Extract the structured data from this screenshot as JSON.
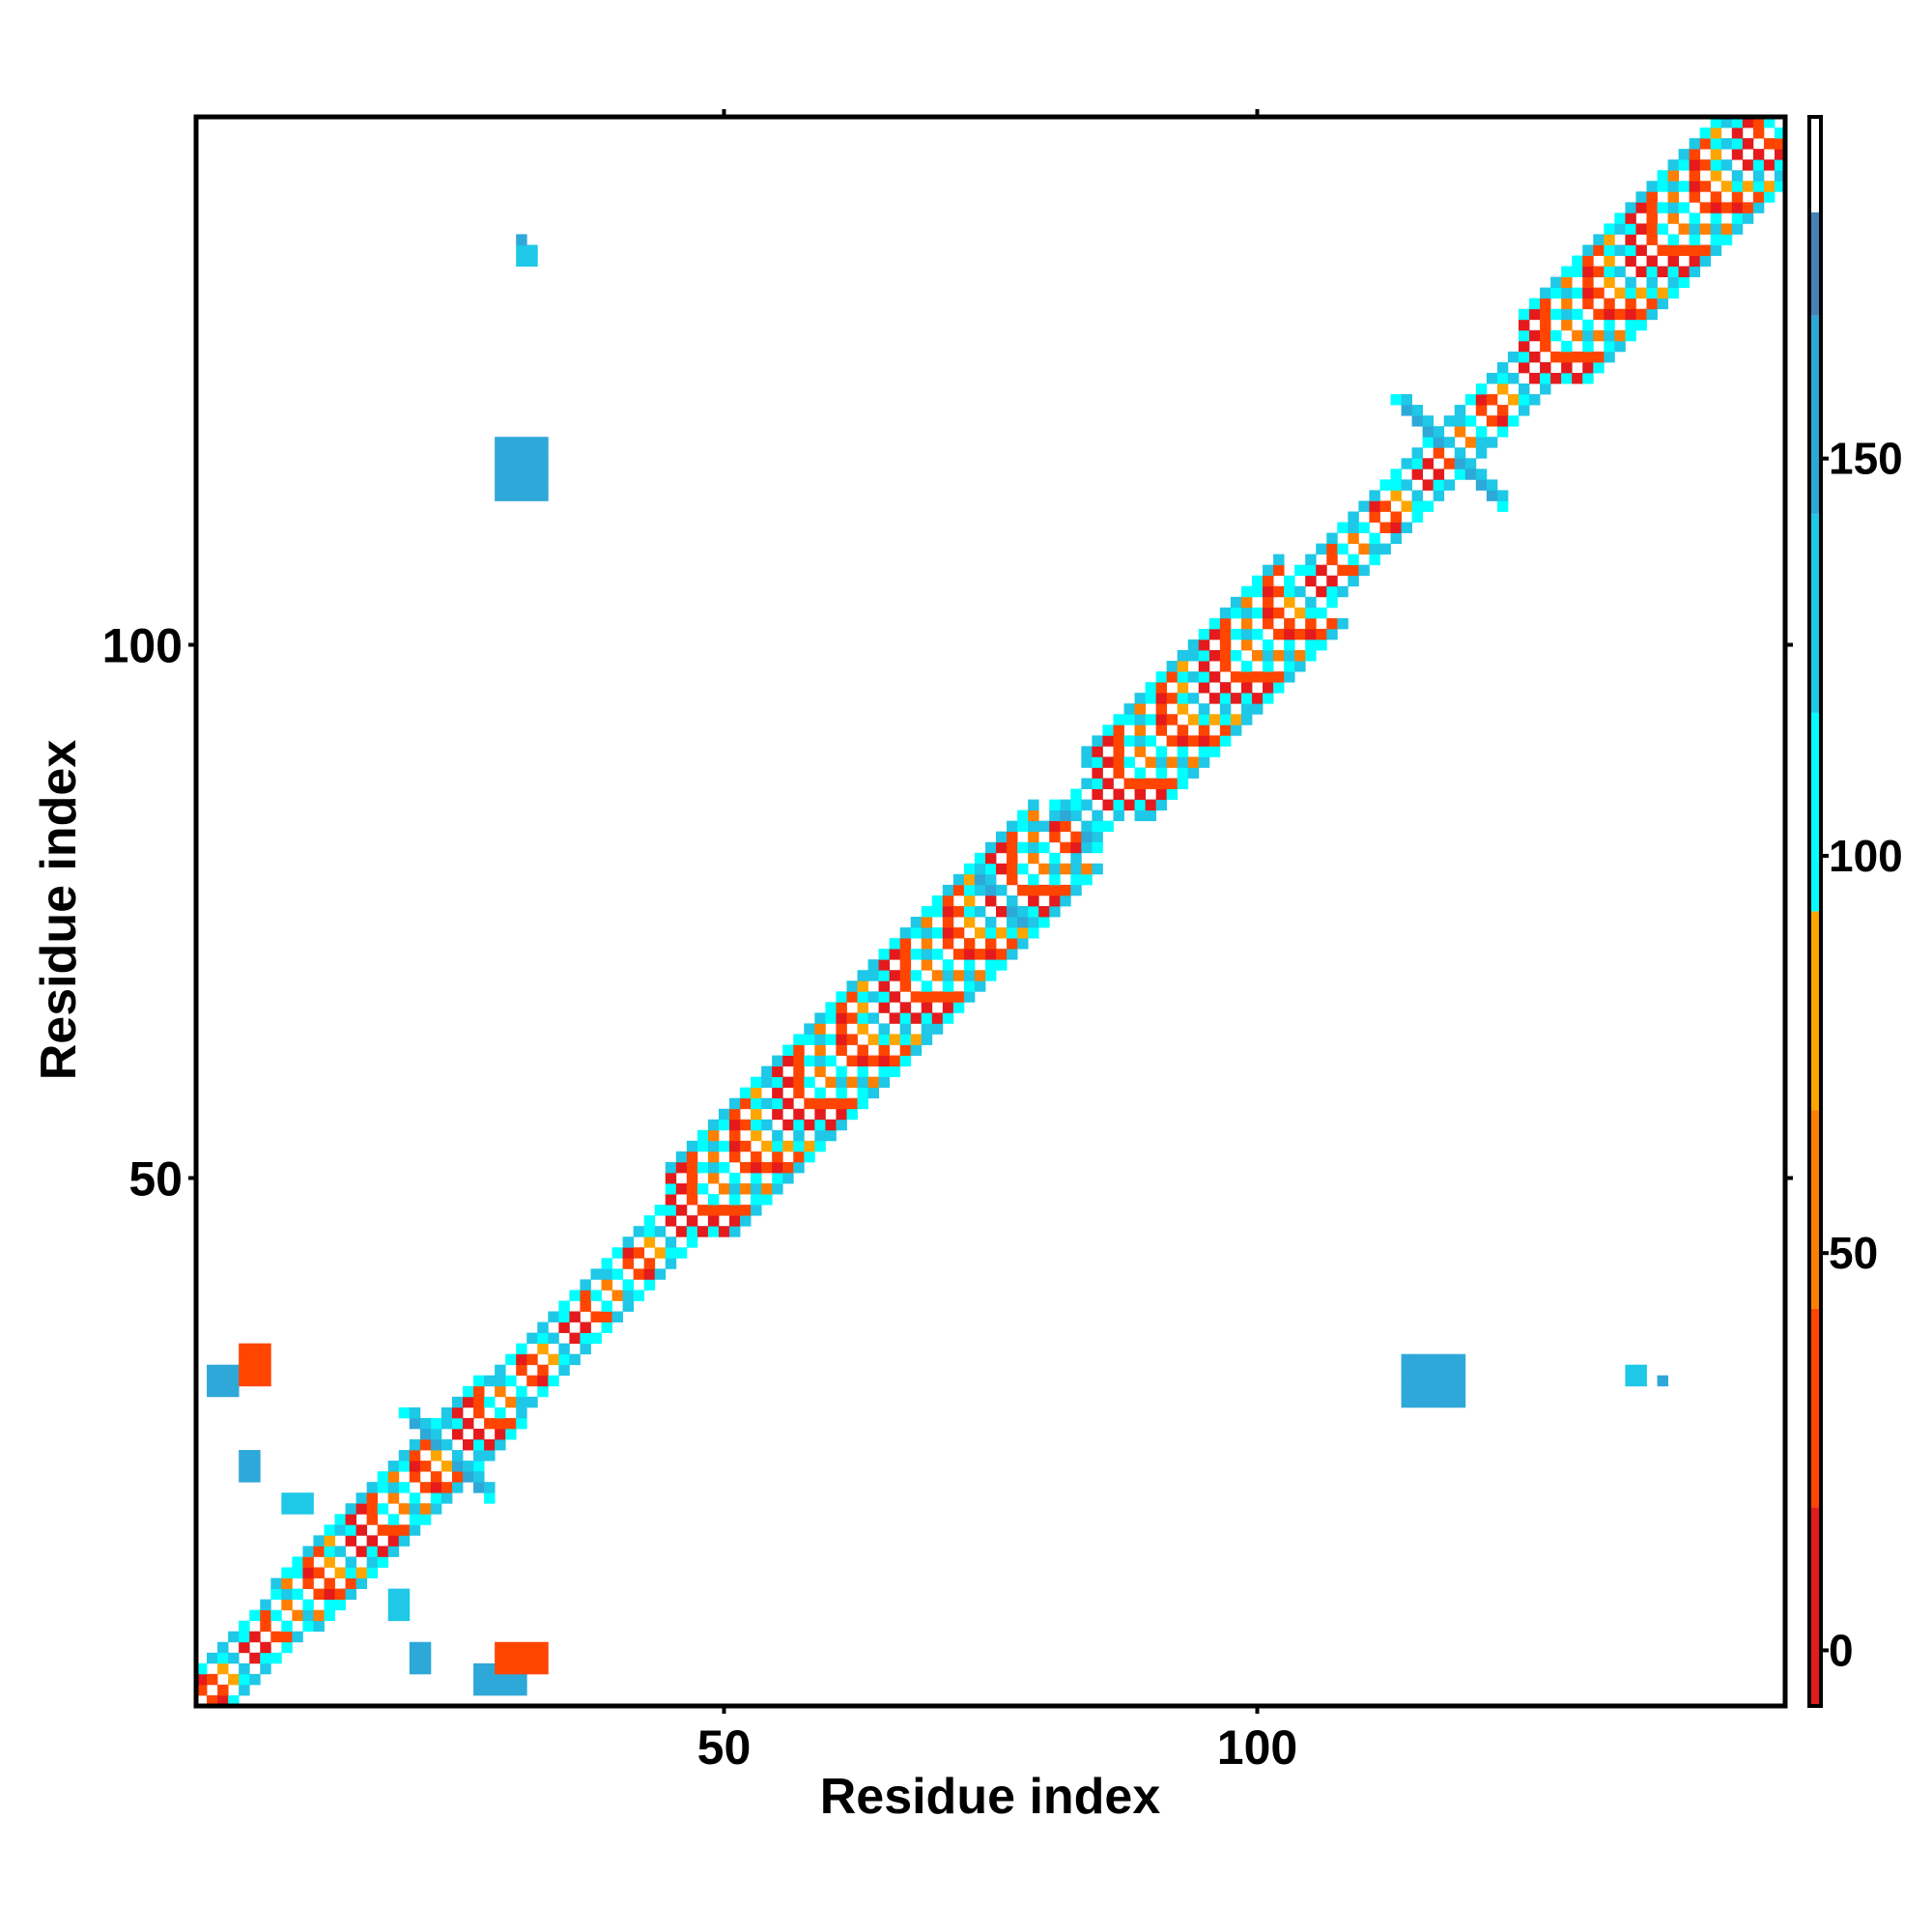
{
  "chart_data": {
    "type": "heatmap",
    "title": "",
    "xlabel": "Residue index",
    "ylabel": "Residue index",
    "xlim": [
      0.5,
      149.5
    ],
    "ylim": [
      0.5,
      149.5
    ],
    "xticks": [
      50,
      100
    ],
    "yticks": [
      50,
      100
    ],
    "xtick_labels": [
      "50",
      "100"
    ],
    "ytick_labels": [
      "50",
      "100"
    ],
    "grid": false,
    "legend": "none",
    "colorbar": {
      "ticks": [
        0,
        50,
        100,
        150
      ],
      "tick_labels": [
        "0",
        "50",
        "100",
        "150"
      ],
      "range": [
        -7,
        193
      ],
      "bands": [
        {
          "from": -7,
          "to": 18,
          "color": "#e41a1c"
        },
        {
          "from": 18,
          "to": 43,
          "color": "#ff4500"
        },
        {
          "from": 43,
          "to": 68,
          "color": "#ff7f00"
        },
        {
          "from": 68,
          "to": 93,
          "color": "#ffa500"
        },
        {
          "from": 93,
          "to": 118,
          "color": "#00ffff"
        },
        {
          "from": 118,
          "to": 143,
          "color": "#1ec8e6"
        },
        {
          "from": 143,
          "to": 168,
          "color": "#2ea8d8"
        },
        {
          "from": 168,
          "to": 181,
          "color": "#4682b4"
        },
        {
          "from": 181,
          "to": 193,
          "color": "#ffffff"
        }
      ]
    },
    "value_colors": {
      "red": "#e41a1c",
      "orangered": "#ff4500",
      "orange": "#ff7f00",
      "lightorange": "#ffa500",
      "cyan": "#00ffff",
      "skyblue": "#1ec8e6",
      "blue": "#4682b4"
    },
    "diagonal_band": {
      "from_residue": 1,
      "to_residue": 149,
      "segments": [
        {
          "start": 1,
          "end": 8,
          "halfwidth": 3
        },
        {
          "start": 8,
          "end": 20,
          "halfwidth": 4
        },
        {
          "start": 20,
          "end": 28,
          "halfwidth": 4
        },
        {
          "start": 28,
          "end": 45,
          "halfwidth": 3
        },
        {
          "start": 45,
          "end": 80,
          "halfwidth": 6
        },
        {
          "start": 80,
          "end": 84,
          "halfwidth": 3
        },
        {
          "start": 84,
          "end": 103,
          "halfwidth": 6
        },
        {
          "start": 103,
          "end": 116,
          "halfwidth": 3
        },
        {
          "start": 116,
          "end": 125,
          "halfwidth": 3
        },
        {
          "start": 125,
          "end": 149,
          "halfwidth": 6
        }
      ]
    },
    "crosses": [
      {
        "x": 24,
        "y": 24,
        "arm": 4
      },
      {
        "x": 76,
        "y": 76,
        "arm": 3
      },
      {
        "x": 118,
        "y": 118,
        "arm": 5
      },
      {
        "x": 83,
        "y": 83,
        "arm": 2
      }
    ],
    "off_diagonal_patches": [
      {
        "x0": 29,
        "y0": 114,
        "x1": 33,
        "y1": 119,
        "value": 160
      },
      {
        "x0": 114,
        "y0": 29,
        "x1": 119,
        "y1": 33,
        "value": 160
      },
      {
        "x0": 31,
        "y0": 136,
        "x1": 32,
        "y1": 137,
        "value": 120
      },
      {
        "x0": 31,
        "y0": 138,
        "x1": 31,
        "y1": 138,
        "value": 165
      },
      {
        "x0": 135,
        "y0": 31,
        "x1": 136,
        "y1": 32,
        "value": 120
      },
      {
        "x0": 138,
        "y0": 31,
        "x1": 138,
        "y1": 31,
        "value": 165
      },
      {
        "x0": 2,
        "y0": 30,
        "x1": 4,
        "y1": 32,
        "value": 165
      },
      {
        "x0": 5,
        "y0": 31,
        "x1": 7,
        "y1": 34,
        "value": 30
      },
      {
        "x0": 5,
        "y0": 22,
        "x1": 6,
        "y1": 24,
        "value": 165
      },
      {
        "x0": 9,
        "y0": 19,
        "x1": 11,
        "y1": 20,
        "value": 130
      },
      {
        "x0": 19,
        "y0": 9,
        "x1": 20,
        "y1": 11,
        "value": 130
      },
      {
        "x0": 21,
        "y0": 4,
        "x1": 22,
        "y1": 6,
        "value": 165
      },
      {
        "x0": 27,
        "y0": 2,
        "x1": 31,
        "y1": 4,
        "value": 165
      },
      {
        "x0": 29,
        "y0": 4,
        "x1": 33,
        "y1": 6,
        "value": 30
      }
    ]
  }
}
